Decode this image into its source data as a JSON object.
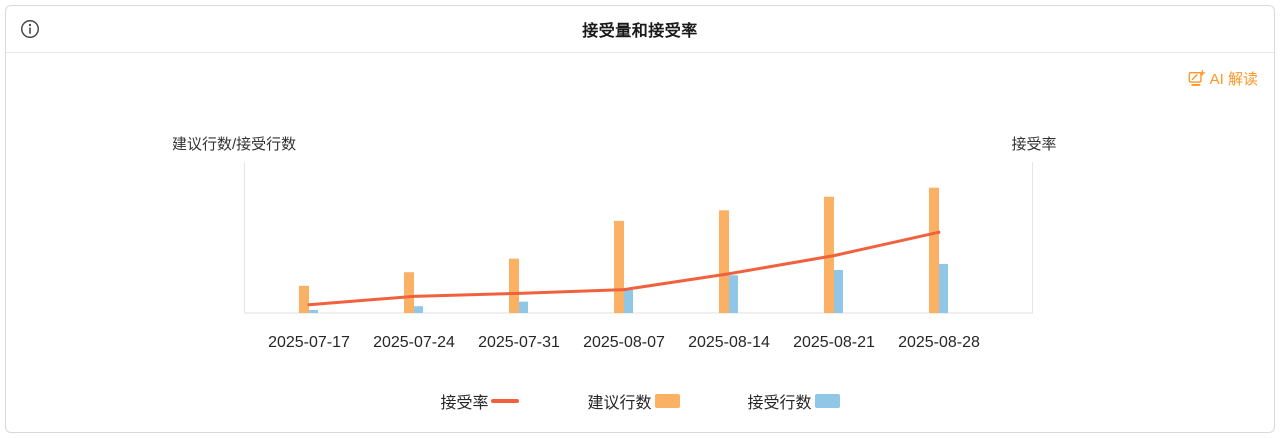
{
  "header": {
    "title": "接受量和接受率"
  },
  "toolbar": {
    "ai_link_label": "AI 解读"
  },
  "chart_data": {
    "type": "bar",
    "title": "接受量和接受率",
    "categories": [
      "2025-07-17",
      "2025-07-24",
      "2025-07-31",
      "2025-08-07",
      "2025-08-14",
      "2025-08-21",
      "2025-08-28"
    ],
    "series": [
      {
        "name": "建议行数",
        "type": "bar",
        "axis": "left",
        "color": "#fbb164",
        "values": [
          18,
          27,
          36,
          61,
          68,
          77,
          83
        ]
      },
      {
        "name": "接受行数",
        "type": "bar",
        "axis": "left",
        "color": "#90c7e6",
        "values": [
          2,
          4.5,
          7.5,
          15.5,
          25,
          28.5,
          32.5
        ]
      },
      {
        "name": "接受率",
        "type": "line",
        "axis": "right",
        "color": "#f2613d",
        "values": [
          5.5,
          11,
          13,
          15.5,
          26,
          38,
          53.5
        ]
      }
    ],
    "ylabel_left": "建议行数/接受行数",
    "ylabel_right": "接受率",
    "ylim": [
      0,
      100
    ],
    "value_note": "axes have no tick labels; values estimated as percent of plot height",
    "legend": [
      "接受率",
      "建议行数",
      "接受行数"
    ],
    "legend_position": "bottom",
    "grid": false
  },
  "colors": {
    "accent_orange": "#ff9626",
    "axis_line": "#e5e5e5",
    "text": "#262626"
  }
}
